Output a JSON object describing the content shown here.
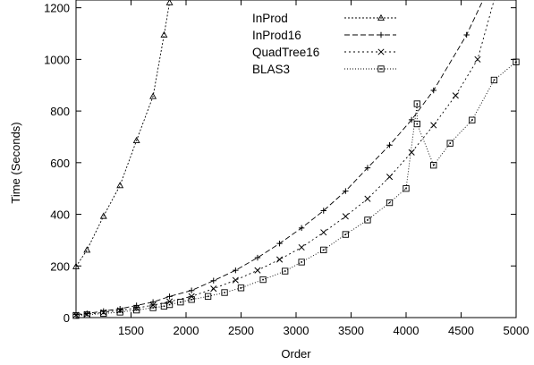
{
  "chart_data": {
    "type": "line",
    "xlabel": "Order",
    "ylabel": "Time (Seconds)",
    "xlim": [
      1000,
      5000
    ],
    "ylim": [
      0,
      1230
    ],
    "xticks": [
      1500,
      2000,
      2500,
      3000,
      3500,
      4000,
      4500,
      5000
    ],
    "yticks": [
      0,
      200,
      400,
      600,
      800,
      1000,
      1200
    ],
    "grid": false,
    "legend_position": "top-right",
    "series": [
      {
        "name": "InProd",
        "marker": "triangle",
        "dash": "2,2",
        "x": [
          1000,
          1100,
          1250,
          1400,
          1550,
          1700,
          1800,
          1850
        ],
        "y": [
          198,
          262,
          393,
          512,
          686,
          857,
          1095,
          1220
        ],
        "clip_max_y": 1230
      },
      {
        "name": "InProd16",
        "marker": "plus",
        "dash": "6,3",
        "x": [
          1000,
          1100,
          1250,
          1400,
          1550,
          1700,
          1850,
          2050,
          2250,
          2450,
          2650,
          2850,
          3050,
          3250,
          3450,
          3650,
          3850,
          4050,
          4250,
          4550,
          4700
        ],
        "y": [
          12,
          16,
          25,
          34,
          47,
          60,
          82,
          105,
          143,
          183,
          232,
          287,
          347,
          414,
          490,
          580,
          668,
          766,
          880,
          1095,
          1230
        ],
        "clip_max_y": 1230
      },
      {
        "name": "QuadTree16",
        "marker": "x",
        "dash": "2,3",
        "x": [
          1000,
          1100,
          1250,
          1400,
          1550,
          1700,
          1850,
          2050,
          2250,
          2450,
          2650,
          2850,
          3050,
          3250,
          3450,
          3650,
          3850,
          4050,
          4250,
          4450,
          4650,
          4800
        ],
        "y": [
          10,
          13,
          20,
          28,
          37,
          48,
          62,
          82,
          112,
          145,
          183,
          225,
          272,
          330,
          392,
          460,
          545,
          640,
          745,
          860,
          1000,
          1230
        ],
        "clip_max_y": 1230
      },
      {
        "name": "BLAS3",
        "marker": "square",
        "dash": "1,2",
        "x": [
          1000,
          1100,
          1250,
          1400,
          1550,
          1700,
          1800,
          1850,
          1950,
          2050,
          2200,
          2350,
          2500,
          2700,
          2900,
          3050,
          3250,
          3450,
          3650,
          3850,
          4000,
          4100,
          4100,
          4250,
          4400,
          4600,
          4800,
          5000
        ],
        "y": [
          8,
          11,
          16,
          21,
          29,
          38,
          44,
          50,
          60,
          70,
          82,
          97,
          115,
          147,
          180,
          215,
          262,
          322,
          378,
          445,
          500,
          828,
          750,
          590,
          675,
          765,
          920,
          990
        ]
      }
    ]
  }
}
